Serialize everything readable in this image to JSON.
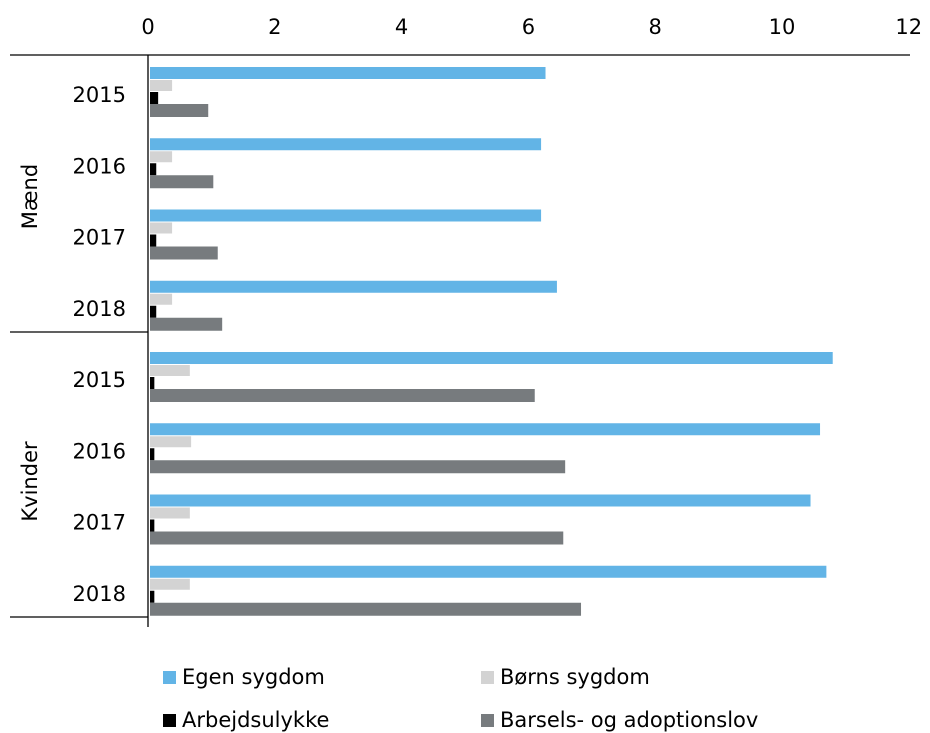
{
  "chart_data": {
    "type": "bar",
    "orientation": "horizontal",
    "x_ticks": [
      "0",
      "2",
      "4",
      "6",
      "8",
      "10",
      "12"
    ],
    "xlim": [
      0,
      12
    ],
    "x_axis_position": "top",
    "groups": [
      {
        "label": "Mænd",
        "categories": [
          "2015",
          "2016",
          "2017",
          "2018"
        ]
      },
      {
        "label": "Kvinder",
        "categories": [
          "2015",
          "2016",
          "2017",
          "2018"
        ]
      }
    ],
    "series": [
      {
        "name": "Egen sygdom",
        "color": "#62b4e6",
        "values": [
          6.27,
          6.2,
          6.2,
          6.45,
          10.8,
          10.6,
          10.45,
          10.7
        ]
      },
      {
        "name": "Børns sygdom",
        "color": "#d3d3d3",
        "values": [
          0.38,
          0.38,
          0.38,
          0.38,
          0.66,
          0.68,
          0.66,
          0.66
        ]
      },
      {
        "name": "Arbejdsulykke",
        "color": "#000000",
        "values": [
          0.16,
          0.13,
          0.13,
          0.13,
          0.1,
          0.1,
          0.1,
          0.1
        ]
      },
      {
        "name": "Barsels- og adoptionslov",
        "color": "#777b7e",
        "values": [
          0.95,
          1.03,
          1.1,
          1.17,
          6.1,
          6.58,
          6.55,
          6.83
        ]
      }
    ],
    "grid": false,
    "legend_position": "bottom"
  }
}
